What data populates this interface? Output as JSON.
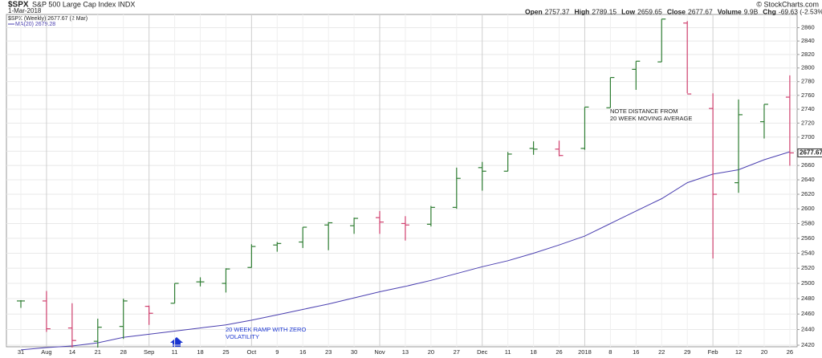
{
  "chart_data": {
    "type": "ohlc",
    "title": "$SPX",
    "subtitle": "S&P 500 Large Cap Index INDX",
    "date": "1-Mar-2018",
    "copyright": "© StockCharts.com",
    "stats": [
      {
        "label": "Open",
        "value": "2757.37"
      },
      {
        "label": "High",
        "value": "2789.15"
      },
      {
        "label": "Low",
        "value": "2659.65"
      },
      {
        "label": "Close",
        "value": "2677.67"
      },
      {
        "label": "Volume",
        "value": "9.9B"
      },
      {
        "label": "Chg",
        "value": "-69.63 (-2.53%)"
      }
    ],
    "legend": [
      "$SPX (Weekly) 2677.67 (2 Mar)",
      "MA(20) 2679.28"
    ],
    "annotations": [
      {
        "lines": [
          "NOTE DISTANCE FROM",
          "20 WEEK MOVING AVERAGE"
        ]
      },
      {
        "lines": [
          "20 WEEK RAMP WITH ZERO",
          "VOLATILITY"
        ]
      }
    ],
    "categories": [
      "31",
      "Aug",
      "14",
      "21",
      "28",
      "Sep",
      "11",
      "18",
      "25",
      "Oct",
      "9",
      "16",
      "23",
      "30",
      "Nov",
      "13",
      "20",
      "27",
      "Dec",
      "11",
      "18",
      "26",
      "2018",
      "8",
      "16",
      "22",
      "29",
      "Feb",
      "12",
      "20",
      "26"
    ],
    "open": [
      2477,
      2477,
      2442,
      2425,
      2444,
      2470,
      2474,
      2502,
      2500,
      2521,
      2551,
      2555,
      2578,
      2577,
      2588,
      2580,
      2579,
      2602,
      2657,
      2652,
      2684,
      2683,
      2684,
      2742,
      2798,
      2809,
      2867,
      2741,
      2636,
      2722,
      2757.37
    ],
    "high": [
      2478,
      2490,
      2474,
      2454,
      2480,
      2471,
      2500,
      2508,
      2520,
      2552,
      2555,
      2575,
      2582,
      2588,
      2597,
      2590,
      2604,
      2657,
      2665,
      2679,
      2694,
      2695,
      2743,
      2786,
      2810,
      2873,
      2870,
      2763,
      2754,
      2747,
      2789.15
    ],
    "low": [
      2468,
      2437,
      2417,
      2417,
      2428,
      2446,
      2474,
      2496,
      2488,
      2521,
      2542,
      2547,
      2544,
      2566,
      2566,
      2557,
      2576,
      2600,
      2625,
      2652,
      2675,
      2673,
      2682,
      2742,
      2768,
      2809,
      2763,
      2533,
      2622,
      2698,
      2659.65
    ],
    "close": [
      2477,
      2441,
      2426,
      2443,
      2477,
      2461,
      2500,
      2502,
      2519,
      2549,
      2553,
      2575,
      2581,
      2587,
      2582,
      2578,
      2602,
      2642,
      2652,
      2676,
      2683,
      2674,
      2743,
      2786,
      2810,
      2873,
      2762,
      2620,
      2732,
      2747,
      2677.67
    ],
    "up_color": "#2e7d32",
    "down_color": "#d0406e",
    "ma": {
      "name": "MA(20)",
      "color": "#4a3fb0",
      "values": [
        2414,
        2417,
        2419,
        2423,
        2430,
        2434,
        2438,
        2442,
        2446,
        2452,
        2459,
        2466,
        2473,
        2481,
        2489,
        2496,
        2504,
        2513,
        2522,
        2530,
        2540,
        2551,
        2563,
        2580,
        2597,
        2614,
        2636,
        2648,
        2654,
        2668,
        2679.28
      ]
    },
    "ylim": [
      2418,
      2880
    ],
    "yticks": [
      2420,
      2440,
      2460,
      2480,
      2500,
      2520,
      2540,
      2560,
      2580,
      2600,
      2620,
      2640,
      2660,
      2680,
      2700,
      2720,
      2740,
      2760,
      2780,
      2800,
      2820,
      2840,
      2860
    ],
    "log_scale": true,
    "grid": true
  }
}
